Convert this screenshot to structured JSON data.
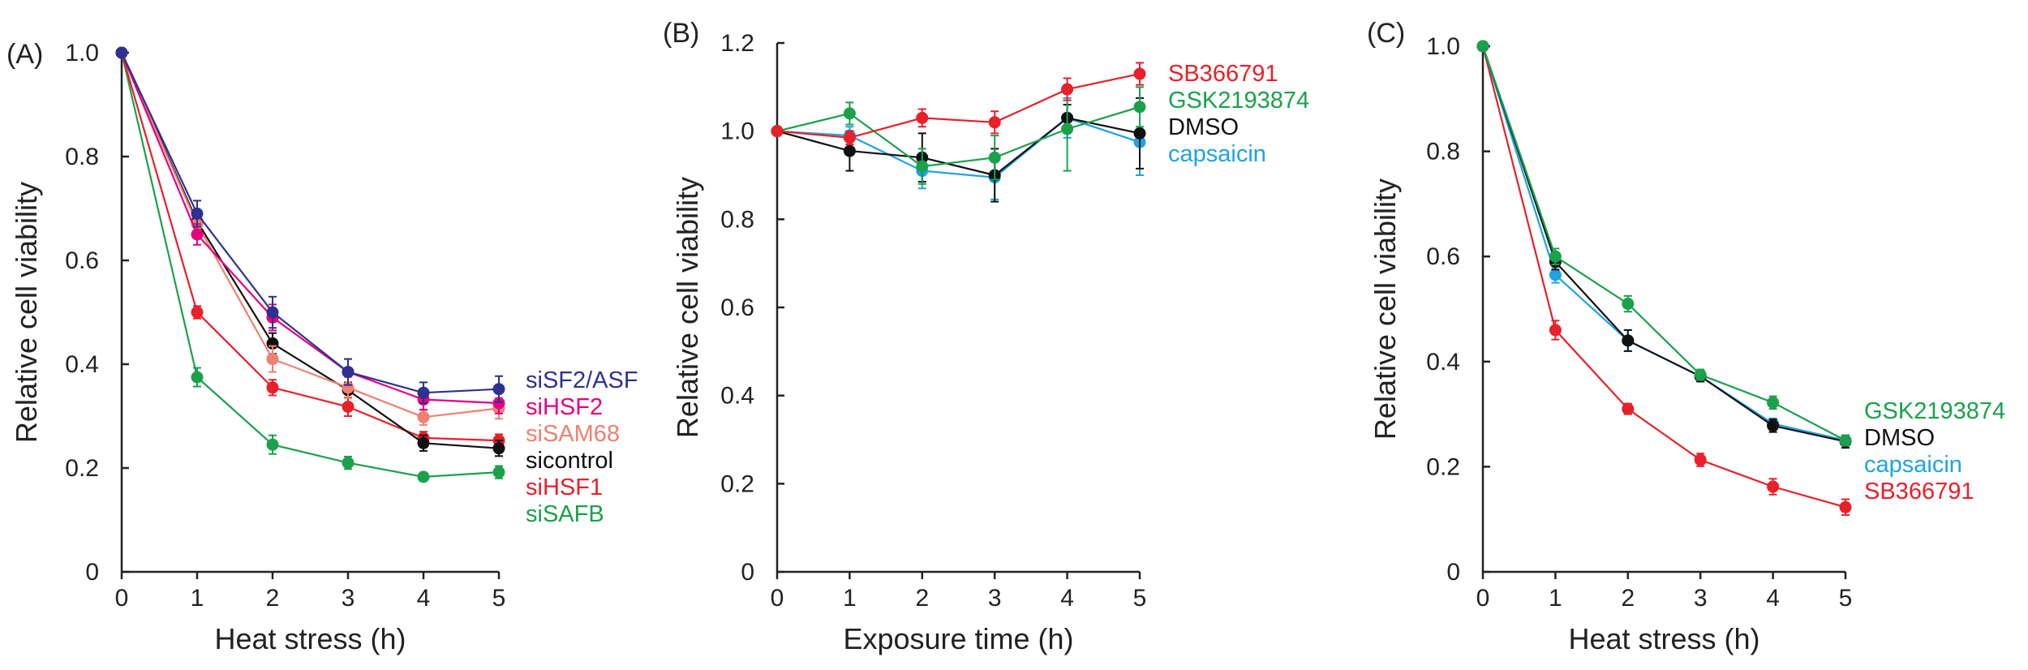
{
  "chart_data": [
    {
      "type": "line",
      "panel_label": "(A)",
      "xlabel": "Heat stress (h)",
      "ylabel": "Relative cell viability",
      "xlim": [
        0,
        5
      ],
      "ylim": [
        0,
        1.0
      ],
      "xticks": [
        "0",
        "1",
        "2",
        "3",
        "4",
        "5"
      ],
      "yticks": [
        "0",
        "0.2",
        "0.4",
        "0.6",
        "0.8",
        "1.0"
      ],
      "x": [
        0,
        1,
        2,
        3,
        4,
        5
      ],
      "legend_position": "right",
      "series": [
        {
          "name": "siSF2/ASF",
          "color": "#2e3192",
          "values": [
            1.0,
            0.69,
            0.5,
            0.385,
            0.345,
            0.352
          ],
          "errors": [
            0,
            0.025,
            0.03,
            0.025,
            0.02,
            0.025
          ]
        },
        {
          "name": "siHSF2",
          "color": "#e6007e",
          "values": [
            1.0,
            0.65,
            0.49,
            0.385,
            0.332,
            0.325
          ],
          "errors": [
            0,
            0.02,
            0.025,
            0.025,
            0.02,
            0.02
          ]
        },
        {
          "name": "siSAM68",
          "color": "#f08070",
          "values": [
            1.0,
            0.67,
            0.41,
            0.355,
            0.298,
            0.315
          ],
          "errors": [
            0,
            0.02,
            0.025,
            0.02,
            0.015,
            0.02
          ]
        },
        {
          "name": "sicontrol",
          "color": "#111111",
          "values": [
            1.0,
            0.675,
            0.44,
            0.35,
            0.248,
            0.238
          ],
          "errors": [
            0,
            0.02,
            0.02,
            0.015,
            0.015,
            0.015
          ]
        },
        {
          "name": "siHSF1",
          "color": "#e8202a",
          "values": [
            1.0,
            0.5,
            0.355,
            0.318,
            0.258,
            0.253
          ],
          "errors": [
            0,
            0.012,
            0.015,
            0.018,
            0.012,
            0.012
          ]
        },
        {
          "name": "siSAFB",
          "color": "#1ba14b",
          "values": [
            1.0,
            0.375,
            0.245,
            0.21,
            0.183,
            0.192
          ],
          "errors": [
            0,
            0.018,
            0.018,
            0.012,
            0.008,
            0.012
          ]
        }
      ]
    },
    {
      "type": "line",
      "panel_label": "(B)",
      "xlabel": "Exposure time (h)",
      "ylabel": "Relative cell viability",
      "xlim": [
        0,
        5
      ],
      "ylim": [
        0,
        1.2
      ],
      "xticks": [
        "0",
        "1",
        "2",
        "3",
        "4",
        "5"
      ],
      "yticks": [
        "0",
        "0.2",
        "0.4",
        "0.6",
        "0.8",
        "1.0",
        "1.2"
      ],
      "x": [
        0,
        1,
        2,
        3,
        4,
        5
      ],
      "legend_position": "top-right",
      "series": [
        {
          "name": "SB366791",
          "color": "#e8202a",
          "values": [
            1.0,
            0.985,
            1.03,
            1.02,
            1.095,
            1.13
          ],
          "errors": [
            0,
            0.015,
            0.02,
            0.025,
            0.025,
            0.025
          ]
        },
        {
          "name": "GSK2193874",
          "color": "#1ba14b",
          "values": [
            1.0,
            1.04,
            0.92,
            0.94,
            1.005,
            1.055
          ],
          "errors": [
            0,
            0.025,
            0.04,
            0.05,
            0.095,
            0.045
          ]
        },
        {
          "name": "DMSO",
          "color": "#111111",
          "values": [
            1.0,
            0.955,
            0.94,
            0.9,
            1.03,
            0.995
          ],
          "errors": [
            0,
            0.045,
            0.055,
            0.06,
            0.03,
            0.08
          ]
        },
        {
          "name": "capsaicin",
          "color": "#1ea4e0",
          "values": [
            1.0,
            0.99,
            0.91,
            0.895,
            1.03,
            0.975
          ],
          "errors": [
            0,
            0.02,
            0.04,
            0.05,
            0.045,
            0.075
          ]
        }
      ]
    },
    {
      "type": "line",
      "panel_label": "(C)",
      "xlabel": "Heat stress (h)",
      "ylabel": "Relative cell viability",
      "xlim": [
        0,
        5
      ],
      "ylim": [
        0,
        1.0
      ],
      "xticks": [
        "0",
        "1",
        "2",
        "3",
        "4",
        "5"
      ],
      "yticks": [
        "0",
        "0.2",
        "0.4",
        "0.6",
        "0.8",
        "1.0"
      ],
      "x": [
        0,
        1,
        2,
        3,
        4,
        5
      ],
      "legend_position": "right",
      "series": [
        {
          "name": "GSK2193874",
          "color": "#1ba14b",
          "values": [
            1.0,
            0.6,
            0.51,
            0.375,
            0.322,
            0.25
          ],
          "errors": [
            0,
            0.015,
            0.015,
            0.01,
            0.012,
            0.01
          ]
        },
        {
          "name": "DMSO",
          "color": "#111111",
          "values": [
            1.0,
            0.59,
            0.44,
            0.372,
            0.278,
            0.248
          ],
          "errors": [
            0,
            0.015,
            0.02,
            0.01,
            0.012,
            0.012
          ]
        },
        {
          "name": "capsaicin",
          "color": "#1ea4e0",
          "values": [
            1.0,
            0.565,
            0.44,
            0.372,
            0.282,
            0.25
          ],
          "errors": [
            0,
            0.015,
            0.02,
            0.01,
            0.01,
            0.01
          ]
        },
        {
          "name": "SB366791",
          "color": "#e8202a",
          "values": [
            1.0,
            0.46,
            0.31,
            0.213,
            0.162,
            0.123
          ],
          "errors": [
            0,
            0.018,
            0.01,
            0.012,
            0.015,
            0.015
          ]
        }
      ]
    }
  ]
}
